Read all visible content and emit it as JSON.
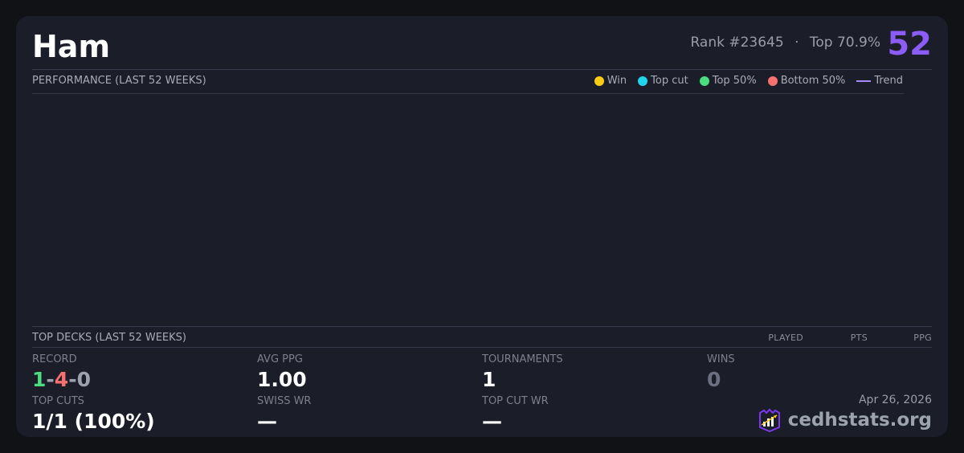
{
  "header": {
    "name": "Ham",
    "rank": "Rank #23645",
    "separator": "·",
    "top_percent": "Top 70.9%",
    "score": "52"
  },
  "performance": {
    "title": "PERFORMANCE (LAST 52 WEEKS)",
    "legend": [
      {
        "label": "Win",
        "color": "#facc15",
        "icon": "dot"
      },
      {
        "label": "Top cut",
        "color": "#22d3ee",
        "icon": "dot"
      },
      {
        "label": "Top 50%",
        "color": "#4ade80",
        "icon": "dot"
      },
      {
        "label": "Bottom 50%",
        "color": "#f87171",
        "icon": "dot"
      },
      {
        "label": "Trend",
        "color": "#a78bfa",
        "icon": "line"
      }
    ]
  },
  "top_decks": {
    "title": "TOP DECKS (LAST 52 WEEKS)",
    "columns": [
      "PLAYED",
      "PTS",
      "PPG"
    ]
  },
  "stats": {
    "record": {
      "label": "RECORD",
      "wins": "1",
      "losses": "4",
      "draws": "0",
      "sep": "-"
    },
    "avg_ppg": {
      "label": "AVG PPG",
      "value": "1.00"
    },
    "tournaments": {
      "label": "TOURNAMENTS",
      "value": "1"
    },
    "wins": {
      "label": "WINS",
      "value": "0"
    },
    "top_cuts": {
      "label": "TOP CUTS",
      "value": "1/1 (100%)"
    },
    "swiss_wr": {
      "label": "SWISS WR",
      "value": "—"
    },
    "top_cut_wr": {
      "label": "TOP CUT WR",
      "value": "—"
    }
  },
  "footer": {
    "date": "Apr 26, 2026",
    "brand": "cedhstats.org"
  },
  "colors": {
    "accent": "#8b5cf6",
    "win": "#4ade80",
    "loss": "#f87171",
    "draw": "#9ca3af"
  }
}
